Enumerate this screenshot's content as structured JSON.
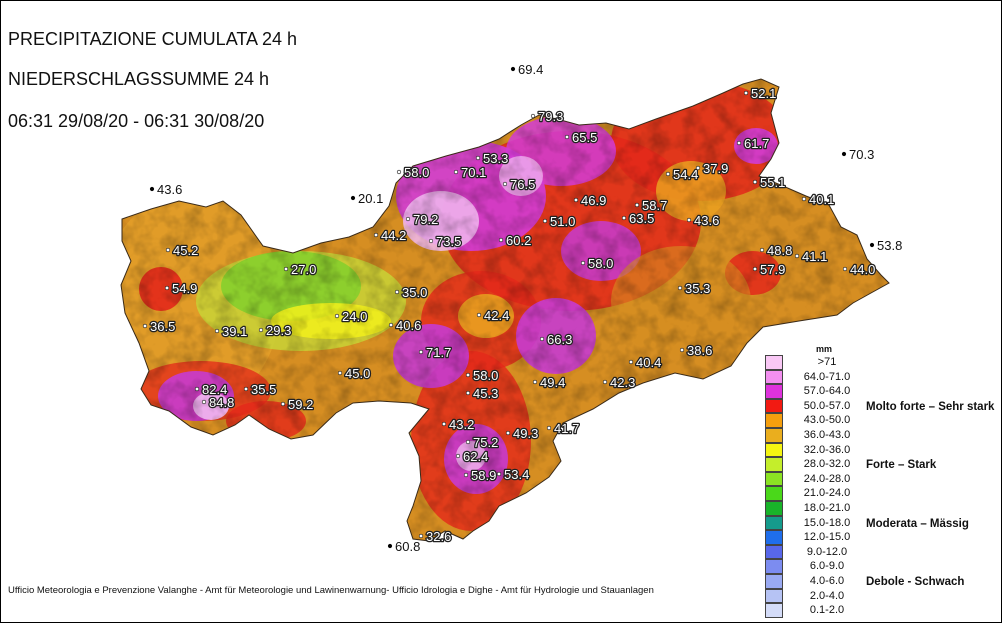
{
  "title": {
    "line1": "PRECIPITAZIONE CUMULATA 24 h",
    "line2": "NIEDERSCHLAGSSUMME 24 h",
    "line3": "06:31 29/08/20 - 06:31 30/08/20"
  },
  "footer": "Ufficio Meteorologia e Prevenzione Valanghe - Amt für Meteorologie und Lawinenwarnung- Ufficio Idrologia e Dighe - Amt für Hydrologie und Stauanlagen",
  "legend": {
    "unit": "mm",
    "classes": [
      {
        "label": ">71",
        "color": "#f9c8f5"
      },
      {
        "label": "64.0-71.0",
        "color": "#f38ff0"
      },
      {
        "label": "57.0-64.0",
        "color": "#de32dc"
      },
      {
        "label": "50.0-57.0",
        "color": "#f21a12"
      },
      {
        "label": "43.0-50.0",
        "color": "#f59f0e"
      },
      {
        "label": "36.0-43.0",
        "color": "#eaae1e"
      },
      {
        "label": "32.0-36.0",
        "color": "#f5f511"
      },
      {
        "label": "28.0-32.0",
        "color": "#c4ee2b"
      },
      {
        "label": "24.0-28.0",
        "color": "#8be323"
      },
      {
        "label": "21.0-24.0",
        "color": "#4ad81a"
      },
      {
        "label": "18.0-21.0",
        "color": "#19b42a"
      },
      {
        "label": "15.0-18.0",
        "color": "#159b8c"
      },
      {
        "label": "12.0-15.0",
        "color": "#1f6eeb"
      },
      {
        "label": "9.0-12.0",
        "color": "#5867ea"
      },
      {
        "label": "6.0-9.0",
        "color": "#7c8cf0"
      },
      {
        "label": "4.0-6.0",
        "color": "#9aaaf2"
      },
      {
        "label": "2.0-4.0",
        "color": "#b6c3f4"
      },
      {
        "label": "0.1-2.0",
        "color": "#d4dcf8"
      }
    ],
    "categories": [
      {
        "label": "Molto forte – Sehr stark"
      },
      {
        "label": "Forte – Stark"
      },
      {
        "label": "Moderata – Mässig"
      },
      {
        "label": "Debole - Schwach"
      }
    ]
  },
  "stations": [
    {
      "label": "69.4",
      "value": 69.4
    },
    {
      "label": "79.3",
      "value": 79.3
    },
    {
      "label": "52.1",
      "value": 52.1
    },
    {
      "label": "65.5",
      "value": 65.5
    },
    {
      "label": "61.7",
      "value": 61.7
    },
    {
      "label": "70.3",
      "value": 70.3
    },
    {
      "label": "53.3",
      "value": 53.3
    },
    {
      "label": "58.0",
      "value": 58.0
    },
    {
      "label": "70.1",
      "value": 70.1
    },
    {
      "label": "76.5",
      "value": 76.5
    },
    {
      "label": "54.4",
      "value": 54.4
    },
    {
      "label": "37.9",
      "value": 37.9
    },
    {
      "label": "55.1",
      "value": 55.1
    },
    {
      "label": "43.6",
      "value": 43.6
    },
    {
      "label": "20.1",
      "value": 20.1
    },
    {
      "label": "46.9",
      "value": 46.9
    },
    {
      "label": "58.7",
      "value": 58.7
    },
    {
      "label": "40.1",
      "value": 40.1
    },
    {
      "label": "79.2",
      "value": 79.2
    },
    {
      "label": "51.0",
      "value": 51.0
    },
    {
      "label": "63.5",
      "value": 63.5
    },
    {
      "label": "43.6",
      "value": 43.6
    },
    {
      "label": "44.2",
      "value": 44.2
    },
    {
      "label": "73.5",
      "value": 73.5
    },
    {
      "label": "60.2",
      "value": 60.2
    },
    {
      "label": "53.8",
      "value": 53.8
    },
    {
      "label": "45.2",
      "value": 45.2
    },
    {
      "label": "48.8",
      "value": 48.8
    },
    {
      "label": "41.1",
      "value": 41.1
    },
    {
      "label": "27.0",
      "value": 27.0
    },
    {
      "label": "58.0",
      "value": 58.0
    },
    {
      "label": "57.9",
      "value": 57.9
    },
    {
      "label": "44.0",
      "value": 44.0
    },
    {
      "label": "54.9",
      "value": 54.9
    },
    {
      "label": "35.3",
      "value": 35.3
    },
    {
      "label": "35.0",
      "value": 35.0
    },
    {
      "label": "42.4",
      "value": 42.4
    },
    {
      "label": "24.0",
      "value": 24.0
    },
    {
      "label": "36.5",
      "value": 36.5
    },
    {
      "label": "39.1",
      "value": 39.1
    },
    {
      "label": "29.3",
      "value": 29.3
    },
    {
      "label": "40.6",
      "value": 40.6
    },
    {
      "label": "66.3",
      "value": 66.3
    },
    {
      "label": "71.7",
      "value": 71.7
    },
    {
      "label": "38.6",
      "value": 38.6
    },
    {
      "label": "40.4",
      "value": 40.4
    },
    {
      "label": "45.0",
      "value": 45.0
    },
    {
      "label": "58.0",
      "value": 58.0
    },
    {
      "label": "42.3",
      "value": 42.3
    },
    {
      "label": "49.4",
      "value": 49.4
    },
    {
      "label": "82.4",
      "value": 82.4
    },
    {
      "label": "35.5",
      "value": 35.5
    },
    {
      "label": "45.3",
      "value": 45.3
    },
    {
      "label": "84.8",
      "value": 84.8
    },
    {
      "label": "59.2",
      "value": 59.2
    },
    {
      "label": "43.2",
      "value": 43.2
    },
    {
      "label": "75.2",
      "value": 75.2
    },
    {
      "label": "49.3",
      "value": 49.3
    },
    {
      "label": "41.7",
      "value": 41.7
    },
    {
      "label": "62.4",
      "value": 62.4
    },
    {
      "label": "58.9",
      "value": 58.9
    },
    {
      "label": "53.4",
      "value": 53.4
    },
    {
      "label": "32.6",
      "value": 32.6
    },
    {
      "label": "60.8",
      "value": 60.8
    }
  ]
}
